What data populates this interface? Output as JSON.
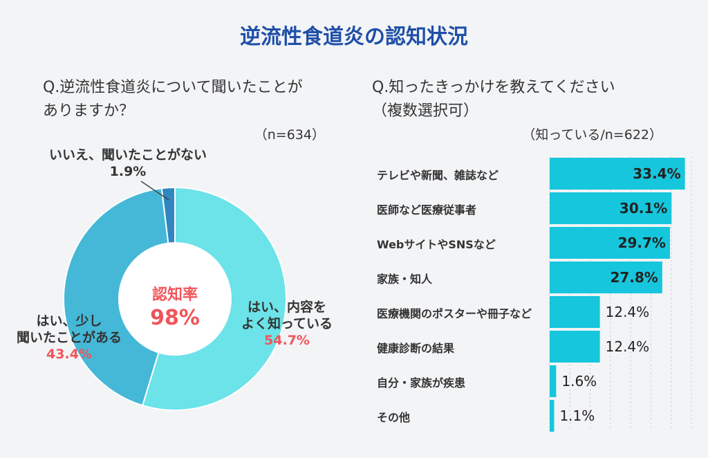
{
  "title": "逆流性食道炎の認知状況",
  "left_question_line1": "Q.逆流性食道炎について聞いたことが",
  "left_question_line2": "ありますか？",
  "left_n": "（n=634）",
  "right_question_line1": "Q.知ったきっかけを教えてください",
  "right_question_line2": "（複数選択可）",
  "right_n": "（知っている/n=622）",
  "colors": {
    "title": "#1f4fa8",
    "accent_red": "#f0555a",
    "bar": "#16c6dc",
    "slice_yes_well": "#6be3e8",
    "slice_yes_little": "#45b8d8",
    "slice_no": "#2f86c0"
  },
  "chart_data": [
    {
      "type": "pie",
      "variant": "donut",
      "center_label": "認知率",
      "center_value": "98%",
      "slices": [
        {
          "line1": "はい、内容を",
          "line2": "よく知っている",
          "value": 54.7,
          "value_label": "54.7%"
        },
        {
          "line1": "はい、少し",
          "line2": "聞いたことがある",
          "value": 43.4,
          "value_label": "43.4%"
        },
        {
          "line1": "いいえ、聞いたことがない",
          "line2": "",
          "value": 1.9,
          "value_label": "1.9%"
        }
      ]
    },
    {
      "type": "bar",
      "orientation": "horizontal",
      "xlim": [
        0,
        35
      ],
      "categories": [
        "テレビや新聞、雑誌など",
        "医師など医療従事者",
        "WebサイトやSNSなど",
        "家族・知人",
        "医療機関のポスターや冊子など",
        "健康診断の結果",
        "自分・家族が疾患",
        "その他"
      ],
      "values": [
        33.4,
        30.1,
        29.7,
        27.8,
        12.4,
        12.4,
        1.6,
        1.1
      ],
      "value_labels": [
        "33.4%",
        "30.1%",
        "29.7%",
        "27.8%",
        "12.4%",
        "12.4%",
        "1.6%",
        "1.1%"
      ]
    }
  ]
}
